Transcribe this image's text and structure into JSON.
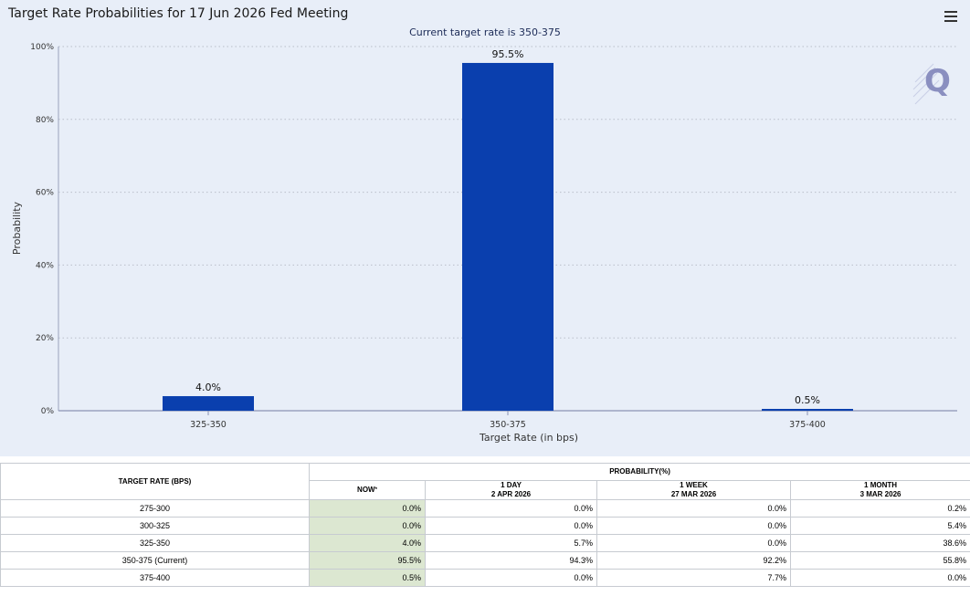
{
  "chart": {
    "title": "Target Rate Probabilities for 17 Jun 2026 Fed Meeting",
    "subtitle": "Current target rate is 350-375",
    "menu_icon": "hamburger-menu-icon",
    "logo_icon": "quikstrike-q-logo",
    "bar_color": "#0a3fae"
  },
  "chart_data": {
    "type": "bar",
    "title": "Target Rate Probabilities for 17 Jun 2026 Fed Meeting",
    "subtitle": "Current target rate is 350-375",
    "xlabel": "Target Rate (in bps)",
    "ylabel": "Probability",
    "categories": [
      "325-350",
      "350-375",
      "375-400"
    ],
    "values": [
      4.0,
      95.5,
      0.5
    ],
    "data_labels": [
      "4.0%",
      "95.5%",
      "0.5%"
    ],
    "ylim": [
      0,
      100
    ],
    "yticks": [
      0,
      20,
      40,
      60,
      80,
      100
    ],
    "ytick_labels": [
      "0%",
      "20%",
      "40%",
      "60%",
      "80%",
      "100%"
    ],
    "grid": true,
    "legend": "none"
  },
  "table": {
    "header_rate": "TARGET RATE (BPS)",
    "header_prob": "PROBABILITY(%)",
    "columns": [
      {
        "label": "NOW",
        "sup": "*",
        "date": ""
      },
      {
        "label": "1 DAY",
        "sup": "",
        "date": "2 APR 2026"
      },
      {
        "label": "1 WEEK",
        "sup": "",
        "date": "27 MAR 2026"
      },
      {
        "label": "1 MONTH",
        "sup": "",
        "date": "3 MAR 2026"
      }
    ],
    "rows": [
      {
        "rate": "275-300",
        "values": [
          "0.0%",
          "0.0%",
          "0.0%",
          "0.2%"
        ]
      },
      {
        "rate": "300-325",
        "values": [
          "0.0%",
          "0.0%",
          "0.0%",
          "5.4%"
        ]
      },
      {
        "rate": "325-350",
        "values": [
          "4.0%",
          "5.7%",
          "0.0%",
          "38.6%"
        ]
      },
      {
        "rate": "350-375 (Current)",
        "values": [
          "95.5%",
          "94.3%",
          "92.2%",
          "55.8%"
        ]
      },
      {
        "rate": "375-400",
        "values": [
          "0.5%",
          "0.0%",
          "7.7%",
          "0.0%"
        ]
      }
    ]
  }
}
